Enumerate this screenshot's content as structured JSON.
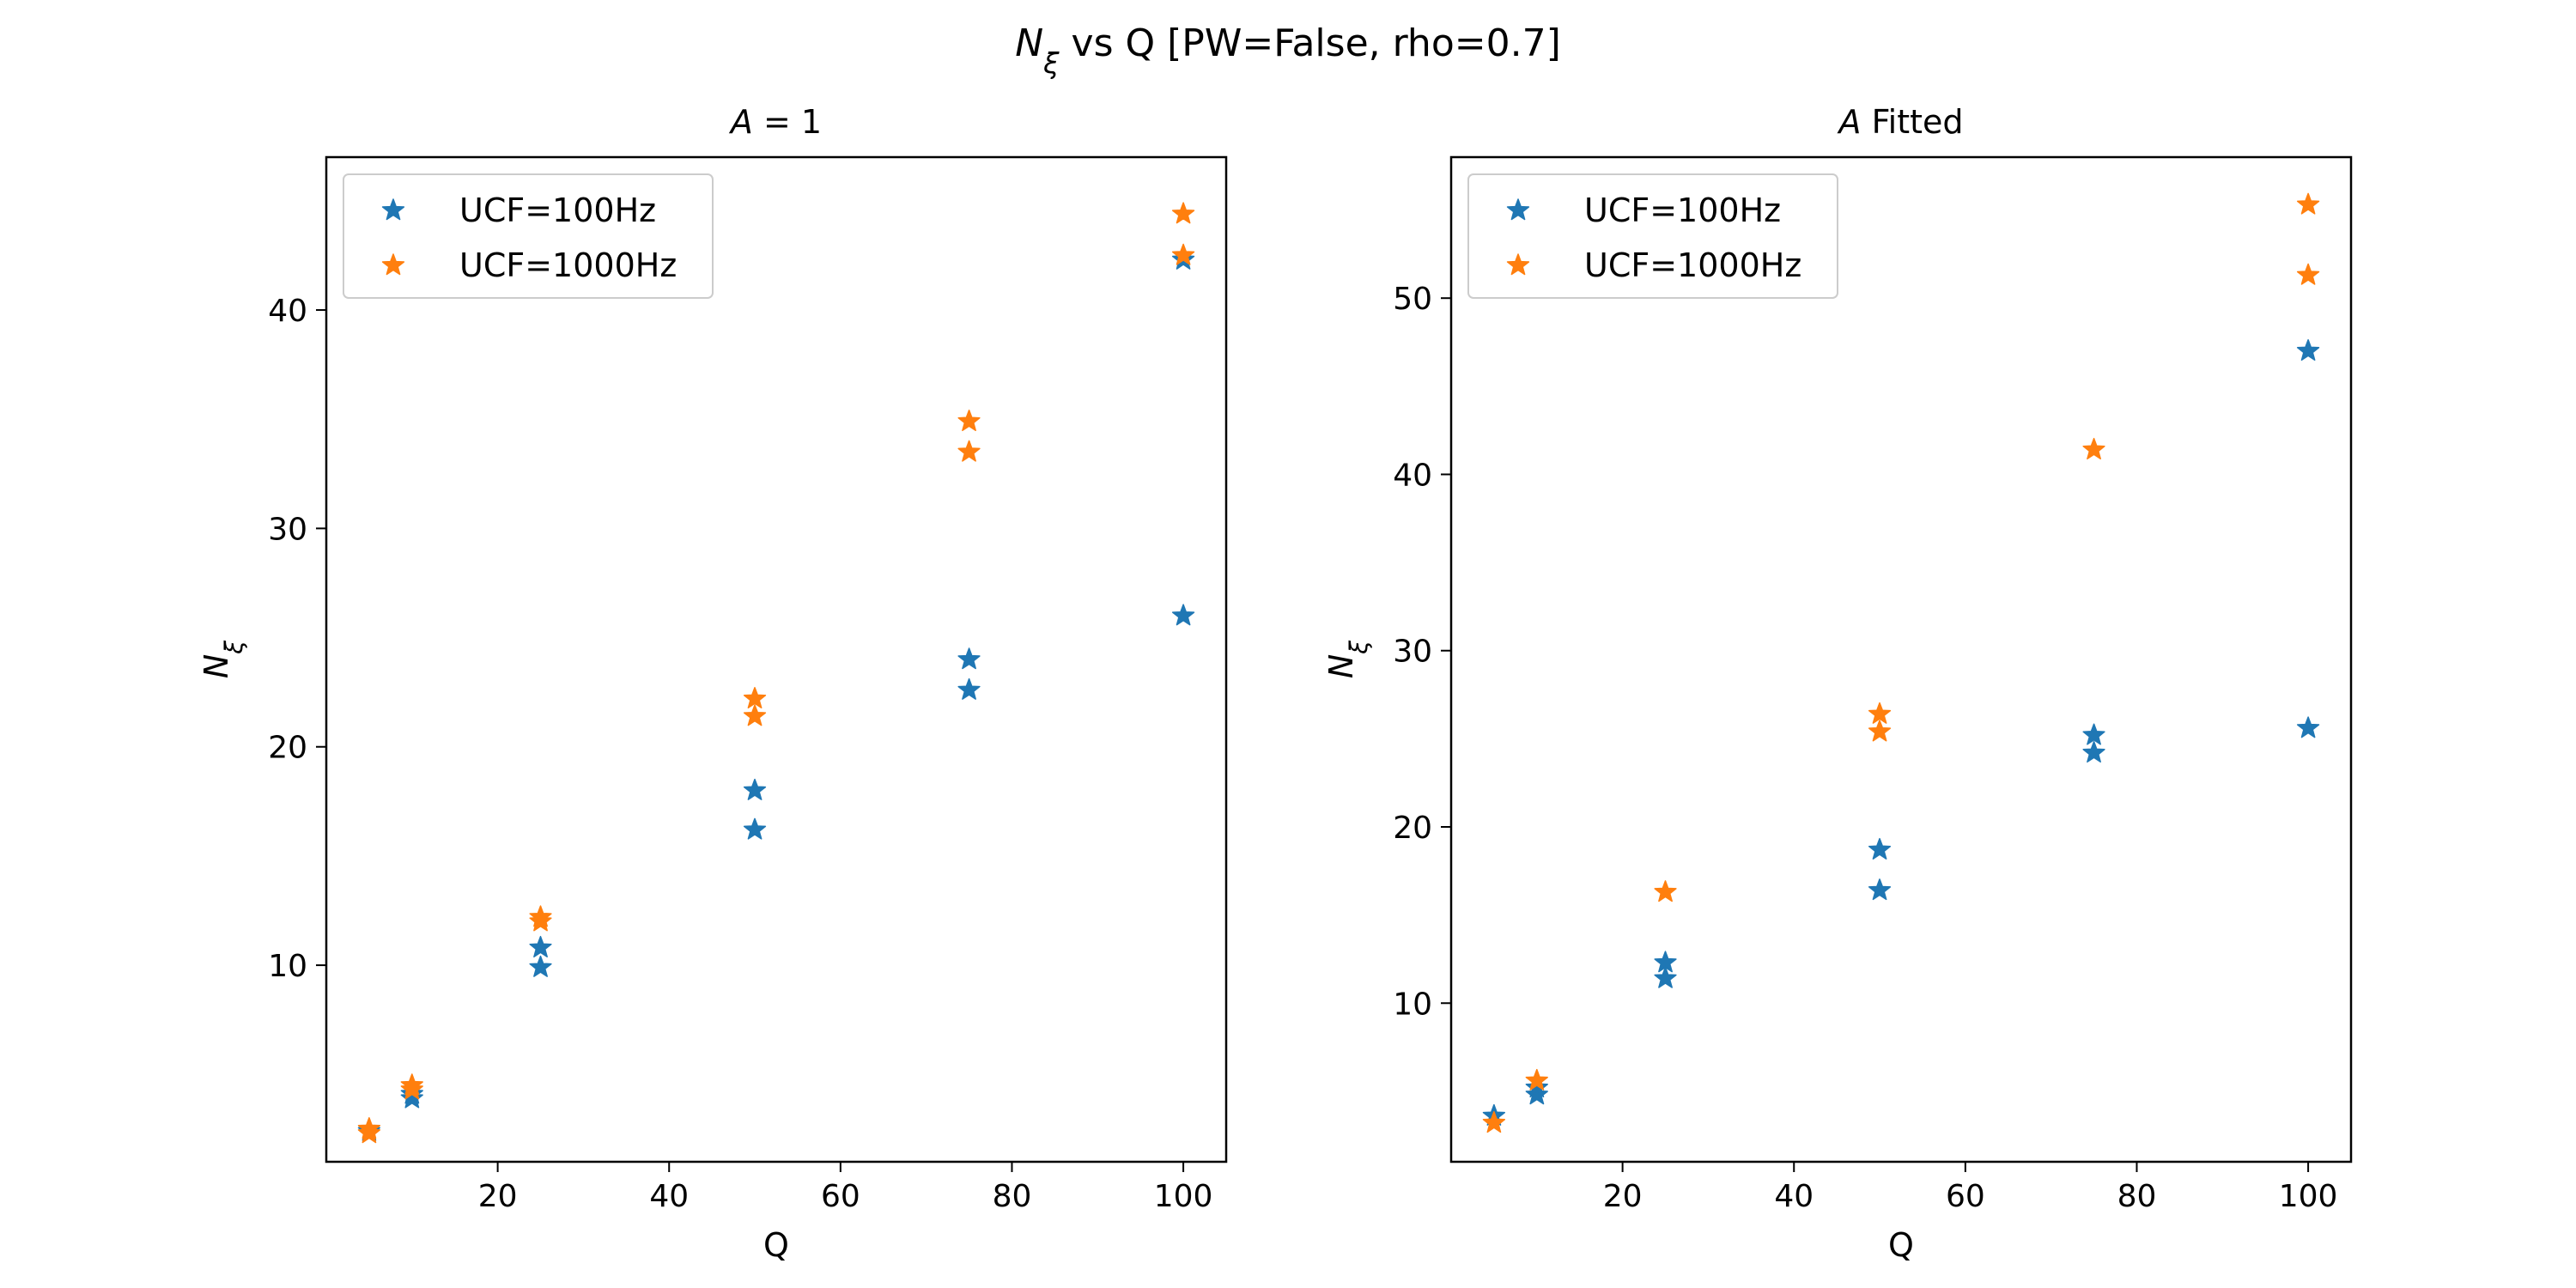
{
  "figure_title": "N_ξ vs Q [PW=False, rho=0.7]",
  "chart_data": [
    {
      "type": "scatter",
      "title": "A = 1",
      "xlabel": "Q",
      "ylabel": "N_ξ",
      "xlim": [
        0,
        105
      ],
      "ylim": [
        1,
        47
      ],
      "xticks": [
        20,
        40,
        60,
        80,
        100
      ],
      "yticks": [
        10,
        20,
        30,
        40
      ],
      "marker": "star",
      "legend_position": "upper left",
      "series": [
        {
          "name": "UCF=100Hz",
          "color": "#1f77b4",
          "points": [
            [
              5,
              2.4
            ],
            [
              10,
              3.9
            ],
            [
              10,
              4.1
            ],
            [
              25,
              9.9
            ],
            [
              25,
              10.8
            ],
            [
              50,
              16.2
            ],
            [
              50,
              18.0
            ],
            [
              75,
              22.6
            ],
            [
              75,
              24.0
            ],
            [
              100,
              26.0
            ],
            [
              100,
              42.3
            ]
          ]
        },
        {
          "name": "UCF=1000Hz",
          "color": "#ff7f0e",
          "points": [
            [
              5,
              2.3
            ],
            [
              5,
              2.5
            ],
            [
              10,
              4.3
            ],
            [
              10,
              4.5
            ],
            [
              25,
              12.0
            ],
            [
              25,
              12.2
            ],
            [
              50,
              21.4
            ],
            [
              50,
              22.2
            ],
            [
              75,
              33.5
            ],
            [
              75,
              34.9
            ],
            [
              100,
              42.5
            ],
            [
              100,
              44.4
            ]
          ]
        }
      ]
    },
    {
      "type": "scatter",
      "title": "A Fitted",
      "xlabel": "Q",
      "ylabel": "N_ξ",
      "xlim": [
        0,
        105
      ],
      "ylim": [
        1,
        58
      ],
      "xticks": [
        20,
        40,
        60,
        80,
        100
      ],
      "yticks": [
        10,
        20,
        30,
        40,
        50
      ],
      "marker": "star",
      "legend_position": "upper left",
      "series": [
        {
          "name": "UCF=100Hz",
          "color": "#1f77b4",
          "points": [
            [
              5,
              3.6
            ],
            [
              10,
              4.8
            ],
            [
              10,
              5.2
            ],
            [
              25,
              11.4
            ],
            [
              25,
              12.3
            ],
            [
              50,
              16.4
            ],
            [
              50,
              18.7
            ],
            [
              75,
              24.2
            ],
            [
              75,
              25.2
            ],
            [
              100,
              25.6
            ],
            [
              100,
              47.0
            ]
          ]
        },
        {
          "name": "UCF=1000Hz",
          "color": "#ff7f0e",
          "points": [
            [
              5,
              3.2
            ],
            [
              10,
              5.6
            ],
            [
              25,
              16.3
            ],
            [
              50,
              25.4
            ],
            [
              50,
              26.4
            ],
            [
              75,
              41.4
            ],
            [
              100,
              51.3
            ],
            [
              100,
              55.3
            ]
          ]
        }
      ]
    }
  ]
}
